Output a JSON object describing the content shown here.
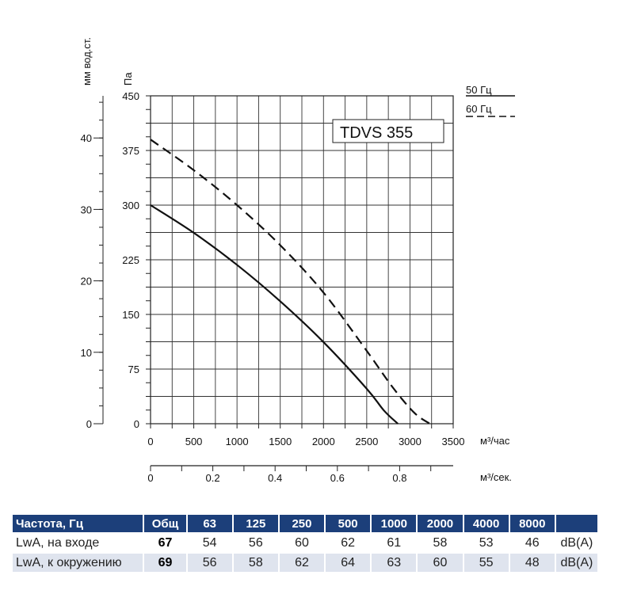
{
  "chart_data": {
    "type": "line",
    "model_label": "TDVS 355",
    "x": [
      0,
      500,
      1000,
      1500,
      2000,
      2500,
      2850,
      3260
    ],
    "series": [
      {
        "name": "50 Гц",
        "style": "solid",
        "points": [
          [
            0,
            300
          ],
          [
            500,
            262
          ],
          [
            1000,
            218
          ],
          [
            1500,
            168
          ],
          [
            2000,
            112
          ],
          [
            2500,
            48
          ],
          [
            2700,
            18
          ],
          [
            2860,
            0
          ]
        ]
      },
      {
        "name": "60 Гц",
        "style": "dashed",
        "points": [
          [
            0,
            390
          ],
          [
            500,
            348
          ],
          [
            1000,
            300
          ],
          [
            1500,
            245
          ],
          [
            2000,
            180
          ],
          [
            2500,
            100
          ],
          [
            2800,
            50
          ],
          [
            3050,
            15
          ],
          [
            3230,
            0
          ]
        ]
      }
    ],
    "x_axis": {
      "unit": "м³/час",
      "range": [
        0,
        3500
      ],
      "ticks": [
        "0",
        "500",
        "1000",
        "1500",
        "2000",
        "2500",
        "3000",
        "3500"
      ]
    },
    "y_axis_pa": {
      "unit": "Па",
      "range": [
        0,
        450
      ],
      "ticks": [
        "0",
        "75",
        "150",
        "225",
        "300",
        "375",
        "450"
      ]
    },
    "y_axis_mm": {
      "unit": "мм вод.ст.",
      "range": [
        0,
        45.9
      ],
      "ticks": [
        "0",
        "10",
        "20",
        "30",
        "40"
      ]
    },
    "x2_axis": {
      "unit": "м³/сек.",
      "range": [
        0,
        0.972
      ],
      "ticks": [
        "0",
        "0.2",
        "0.4",
        "0.6",
        "0.8"
      ]
    },
    "grid": true,
    "legend": [
      "50 Гц",
      "60 Гц"
    ],
    "legend_placement": "top-right"
  },
  "noise_table": {
    "header": [
      "Частота, Гц",
      "Общ",
      "63",
      "125",
      "250",
      "500",
      "1000",
      "2000",
      "4000",
      "8000",
      ""
    ],
    "rows": [
      {
        "label": "LwA, на входе",
        "total": "67",
        "values": [
          "54",
          "56",
          "60",
          "62",
          "61",
          "58",
          "53",
          "46"
        ],
        "unit": "dB(A)"
      },
      {
        "label": "LwA, к окружению",
        "total": "69",
        "values": [
          "56",
          "58",
          "62",
          "64",
          "63",
          "60",
          "55",
          "48"
        ],
        "unit": "dB(A)"
      }
    ]
  }
}
